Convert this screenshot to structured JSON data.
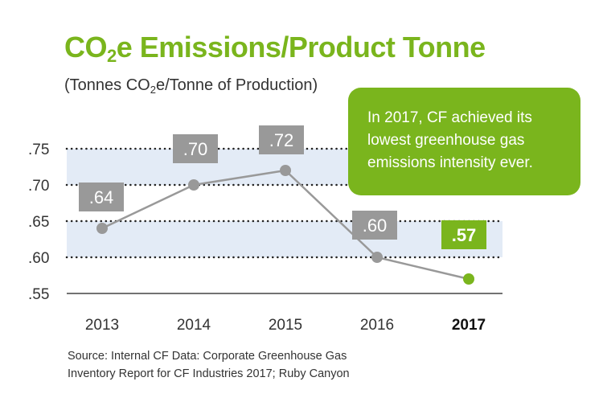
{
  "title": {
    "prefix": "CO",
    "sub": "2",
    "suffix": "e Emissions/Product Tonne"
  },
  "subtitle": {
    "prefix": "(Tonnes CO",
    "sub": "2",
    "suffix": "e/Tonne of Production)"
  },
  "callout": "In 2017, CF achieved its lowest greenhouse gas emissions intensity ever.",
  "source": {
    "line1": "Source: Internal CF Data: Corporate Greenhouse Gas",
    "line2": "Inventory Report for CF Industries 2017; Ruby Canyon"
  },
  "colors": {
    "accent": "#7ab51d",
    "line": "#999999",
    "label_box": "#999999",
    "band": "#e3ebf6"
  },
  "chart_data": {
    "type": "line",
    "categories": [
      "2013",
      "2014",
      "2015",
      "2016",
      "2017"
    ],
    "values": [
      0.64,
      0.7,
      0.72,
      0.6,
      0.57
    ],
    "data_labels": [
      ".64",
      ".70",
      ".72",
      ".60",
      ".57"
    ],
    "highlight_index": 4,
    "yticks": [
      ".75",
      ".70",
      ".65",
      ".60",
      ".55"
    ],
    "ytick_values": [
      0.75,
      0.7,
      0.65,
      0.6,
      0.55
    ],
    "ylim": [
      0.55,
      0.75
    ],
    "bands": [
      [
        0.7,
        0.75
      ],
      [
        0.6,
        0.65
      ]
    ],
    "grid": "dotted"
  }
}
